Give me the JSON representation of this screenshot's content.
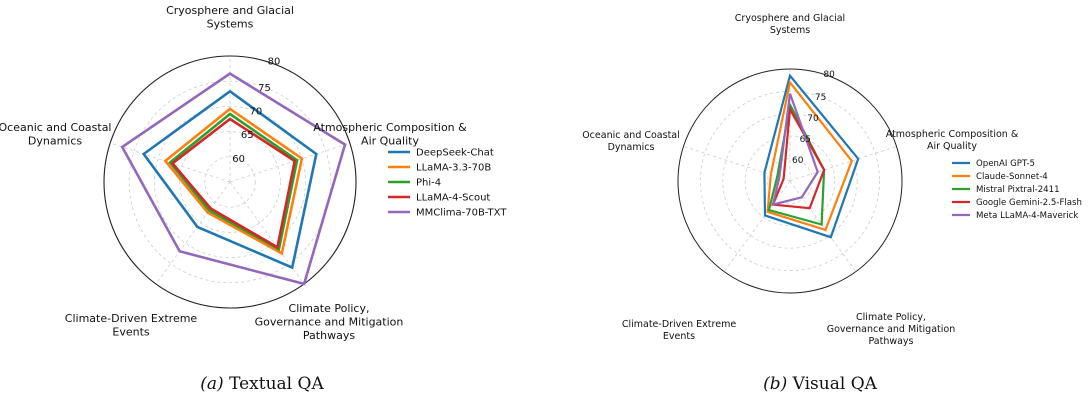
{
  "chart_data": [
    {
      "type": "radar",
      "caption_label": "(a)",
      "caption_text": "Textual QA",
      "axes": [
        "Cryosphere and Glacial Systems",
        "Atmospheric Composition & Air Quality",
        "Climate Policy, Governance and Mitigation Pathways",
        "Climate-Driven Extreme Events",
        "Oceanic and Coastal Dynamics"
      ],
      "axis_label_lines": [
        [
          "Cryosphere and Glacial",
          "Systems"
        ],
        [
          "Atmospheric Composition &",
          "Air Quality"
        ],
        [
          "Climate Policy,",
          "Governance and Mitigation",
          "Pathways"
        ],
        [
          "Climate-Driven Extreme",
          "Events"
        ],
        [
          "Oceanic and Coastal",
          "Dynamics"
        ]
      ],
      "rlim": [
        55,
        80
      ],
      "rticks": [
        60,
        65,
        70,
        75,
        80
      ],
      "grid": true,
      "legend_position": "right",
      "series": [
        {
          "name": "DeepSeek-Chat",
          "color": "#1f77b4",
          "values": [
            73,
            73,
            76,
            66,
            73
          ]
        },
        {
          "name": "LLaMA-3.3-70B",
          "color": "#ff7f0e",
          "values": [
            69.5,
            70,
            72.5,
            62.5,
            68.5
          ]
        },
        {
          "name": "Phi-4",
          "color": "#2ca02c",
          "values": [
            68.5,
            69,
            71.5,
            62,
            67.5
          ]
        },
        {
          "name": "LLaMA-4-Scout",
          "color": "#d62728",
          "values": [
            67.5,
            68.5,
            71,
            61.5,
            67
          ]
        },
        {
          "name": "MMClima-70B-TXT",
          "color": "#9467bd",
          "values": [
            76.5,
            79,
            80,
            72,
            77.5
          ]
        }
      ]
    },
    {
      "type": "radar",
      "caption_label": "(b)",
      "caption_text": "Visual QA",
      "axes": [
        "Cryosphere and Glacial Systems",
        "Atmospheric Composition & Air Quality",
        "Climate Policy, Governance and Mitigation Pathways",
        "Climate-Driven Extreme Events",
        "Oceanic and Coastal Dynamics"
      ],
      "axis_label_lines": [
        [
          "Cryosphere and Glacial",
          "Systems"
        ],
        [
          "Atmospheric Composition &",
          "Air Quality"
        ],
        [
          "Climate Policy,",
          "Governance and Mitigation",
          "Pathways"
        ],
        [
          "Climate-Driven Extreme",
          "Events"
        ],
        [
          "Oceanic and Coastal",
          "Dynamics"
        ]
      ],
      "rlim": [
        55,
        80
      ],
      "rticks": [
        60,
        65,
        70,
        75,
        80
      ],
      "grid": true,
      "legend_position": "right",
      "series": [
        {
          "name": "OpenAI GPT-5",
          "color": "#1f77b4",
          "values": [
            78.5,
            71,
            70.5,
            64.5,
            61
          ]
        },
        {
          "name": "Claude-Sonnet-4",
          "color": "#ff7f0e",
          "values": [
            77,
            69.5,
            68.5,
            63.5,
            59.5
          ]
        },
        {
          "name": "Mistral Pixtral-2411",
          "color": "#2ca02c",
          "values": [
            72,
            63,
            67,
            63,
            58
          ]
        },
        {
          "name": "Google Gemini-2.5-Flash",
          "color": "#d62728",
          "values": [
            71,
            63,
            62.5,
            61.5,
            56.5
          ]
        },
        {
          "name": "Meta LLaMA-4-Maverick",
          "color": "#9467bd",
          "values": [
            74.5,
            61.5,
            59.5,
            61.5,
            57.5
          ]
        }
      ]
    }
  ]
}
